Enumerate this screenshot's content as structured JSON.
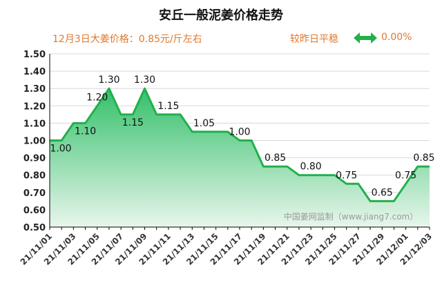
{
  "header": {
    "title": "安丘一般泥姜价格走势",
    "price_label": "12月3日大姜价格：0.85元/斤左右",
    "compare_label": "较昨日平稳",
    "change_value": "0.00%",
    "arrow_icon": "double-arrow-icon"
  },
  "colors": {
    "line": "#21b04b",
    "area_top": "#34c06a",
    "area_bottom": "#e8f6ec",
    "accent": "#e0782a",
    "grid": "#d8d8d8"
  },
  "chart_data": {
    "type": "area",
    "title": "安丘一般泥姜价格走势",
    "xlabel": "",
    "ylabel": "",
    "ylim": [
      0.5,
      1.5
    ],
    "yticks": [
      "1.50",
      "1.40",
      "1.30",
      "1.20",
      "1.10",
      "1.00",
      "0.90",
      "0.80",
      "0.70",
      "0.60",
      "0.50"
    ],
    "grid": true,
    "x": [
      "21/11/01",
      "21/11/02",
      "21/11/03",
      "21/11/04",
      "21/11/05",
      "21/11/06",
      "21/11/07",
      "21/11/08",
      "21/11/09",
      "21/11/10",
      "21/11/11",
      "21/11/12",
      "21/11/13",
      "21/11/14",
      "21/11/15",
      "21/11/16",
      "21/11/17",
      "21/11/18",
      "21/11/19",
      "21/11/20",
      "21/11/21",
      "21/11/22",
      "21/11/23",
      "21/11/24",
      "21/11/25",
      "21/11/26",
      "21/11/27",
      "21/11/28",
      "21/11/29",
      "21/11/30",
      "21/12/01",
      "21/12/02",
      "21/12/03"
    ],
    "xticks": [
      "21/11/01",
      "21/11/03",
      "21/11/05",
      "21/11/07",
      "21/11/09",
      "21/11/11",
      "21/11/13",
      "21/11/15",
      "21/11/17",
      "21/11/19",
      "21/11/21",
      "21/11/23",
      "21/11/25",
      "21/11/27",
      "21/11/29",
      "21/12/01",
      "21/12/03"
    ],
    "values": [
      1.0,
      1.0,
      1.1,
      1.1,
      1.2,
      1.3,
      1.15,
      1.15,
      1.3,
      1.15,
      1.15,
      1.15,
      1.05,
      1.05,
      1.05,
      1.05,
      1.0,
      1.0,
      0.85,
      0.85,
      0.85,
      0.8,
      0.8,
      0.8,
      0.8,
      0.75,
      0.75,
      0.65,
      0.65,
      0.65,
      0.75,
      0.85,
      0.85
    ],
    "data_labels": [
      {
        "index": 0,
        "text": "1.00"
      },
      {
        "index": 3,
        "text": "1.10"
      },
      {
        "index": 4,
        "text": "1.20"
      },
      {
        "index": 5,
        "text": "1.30"
      },
      {
        "index": 7,
        "text": "1.15"
      },
      {
        "index": 8,
        "text": "1.30"
      },
      {
        "index": 10,
        "text": "1.15"
      },
      {
        "index": 13,
        "text": "1.05"
      },
      {
        "index": 16,
        "text": "1.00"
      },
      {
        "index": 19,
        "text": "0.85"
      },
      {
        "index": 22,
        "text": "0.80"
      },
      {
        "index": 25,
        "text": "0.75"
      },
      {
        "index": 28,
        "text": "0.65"
      },
      {
        "index": 30,
        "text": "0.75"
      },
      {
        "index": 32,
        "text": "0.85"
      }
    ],
    "watermark": "中国姜网监制（www.jiang7.com）"
  }
}
